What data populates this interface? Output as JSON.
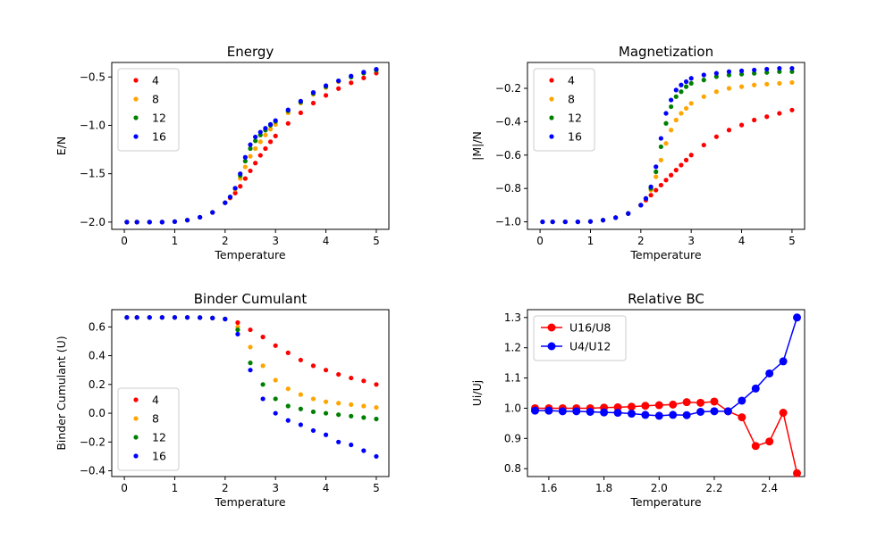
{
  "chart_data": [
    {
      "type": "scatter",
      "title": "Energy",
      "xlabel": "Temperature",
      "ylabel": "E/N",
      "xlim": [
        -0.25,
        5.25
      ],
      "ylim": [
        -2.075,
        -0.35
      ],
      "xticks": [
        0,
        1,
        2,
        3,
        4,
        5
      ],
      "yticks": [
        -2.0,
        -1.5,
        -1.0,
        -0.5
      ],
      "ytick_labels": [
        "−2.0",
        "−1.5",
        "−1.0",
        "−0.5"
      ],
      "legend": "upper left",
      "series": [
        {
          "name": "4",
          "color": "#ff0000",
          "x": [
            0.05,
            0.25,
            0.5,
            0.75,
            1.0,
            1.25,
            1.5,
            1.75,
            2.0,
            2.1,
            2.2,
            2.3,
            2.4,
            2.5,
            2.6,
            2.7,
            2.8,
            2.9,
            3.0,
            3.25,
            3.5,
            3.75,
            4.0,
            4.25,
            4.5,
            4.75,
            5.0
          ],
          "y": [
            -2.0,
            -2.0,
            -2.0,
            -2.0,
            -1.995,
            -1.98,
            -1.95,
            -1.9,
            -1.8,
            -1.75,
            -1.7,
            -1.63,
            -1.55,
            -1.47,
            -1.39,
            -1.31,
            -1.24,
            -1.17,
            -1.11,
            -0.98,
            -0.87,
            -0.77,
            -0.69,
            -0.62,
            -0.56,
            -0.51,
            -0.46
          ]
        },
        {
          "name": "8",
          "color": "#ffa500",
          "x": [
            0.05,
            0.25,
            0.5,
            0.75,
            1.0,
            1.25,
            1.5,
            1.75,
            2.0,
            2.1,
            2.2,
            2.3,
            2.4,
            2.5,
            2.6,
            2.7,
            2.8,
            2.9,
            3.0,
            3.25,
            3.5,
            3.75,
            4.0,
            4.25,
            4.5,
            4.75,
            5.0
          ],
          "y": [
            -2.0,
            -2.0,
            -2.0,
            -2.0,
            -1.995,
            -1.98,
            -1.95,
            -1.9,
            -1.8,
            -1.74,
            -1.66,
            -1.55,
            -1.43,
            -1.32,
            -1.24,
            -1.17,
            -1.1,
            -1.04,
            -0.99,
            -0.87,
            -0.77,
            -0.68,
            -0.61,
            -0.55,
            -0.5,
            -0.46,
            -0.43
          ]
        },
        {
          "name": "12",
          "color": "#008000",
          "x": [
            0.05,
            0.25,
            0.5,
            0.75,
            1.0,
            1.25,
            1.5,
            1.75,
            2.0,
            2.1,
            2.2,
            2.3,
            2.4,
            2.5,
            2.6,
            2.7,
            2.8,
            2.9,
            3.0,
            3.25,
            3.5,
            3.75,
            4.0,
            4.25,
            4.5,
            4.75,
            5.0
          ],
          "y": [
            -2.0,
            -2.0,
            -2.0,
            -2.0,
            -1.995,
            -1.98,
            -1.95,
            -1.9,
            -1.8,
            -1.74,
            -1.65,
            -1.52,
            -1.37,
            -1.24,
            -1.16,
            -1.1,
            -1.05,
            -1.0,
            -0.96,
            -0.85,
            -0.76,
            -0.67,
            -0.6,
            -0.54,
            -0.5,
            -0.46,
            -0.43
          ]
        },
        {
          "name": "16",
          "color": "#0000ff",
          "x": [
            0.05,
            0.25,
            0.5,
            0.75,
            1.0,
            1.25,
            1.5,
            1.75,
            2.0,
            2.1,
            2.2,
            2.3,
            2.4,
            2.5,
            2.6,
            2.7,
            2.8,
            2.9,
            3.0,
            3.25,
            3.5,
            3.75,
            4.0,
            4.25,
            4.5,
            4.75,
            5.0
          ],
          "y": [
            -2.0,
            -2.0,
            -2.0,
            -2.0,
            -1.995,
            -1.98,
            -1.95,
            -1.9,
            -1.8,
            -1.74,
            -1.65,
            -1.5,
            -1.33,
            -1.2,
            -1.12,
            -1.07,
            -1.03,
            -0.99,
            -0.95,
            -0.84,
            -0.75,
            -0.66,
            -0.59,
            -0.54,
            -0.49,
            -0.45,
            -0.42
          ]
        }
      ]
    },
    {
      "type": "scatter",
      "title": "Magnetization",
      "xlabel": "Temperature",
      "ylabel": "|M|/N",
      "xlim": [
        -0.25,
        5.25
      ],
      "ylim": [
        -1.045,
        -0.045
      ],
      "xticks": [
        0,
        1,
        2,
        3,
        4,
        5
      ],
      "yticks": [
        -1.0,
        -0.8,
        -0.6,
        -0.4,
        -0.2
      ],
      "ytick_labels": [
        "−1.0",
        "−0.8",
        "−0.6",
        "−0.4",
        "−0.2"
      ],
      "legend": "upper left",
      "series": [
        {
          "name": "4",
          "color": "#ff0000",
          "x": [
            0.05,
            0.25,
            0.5,
            0.75,
            1.0,
            1.25,
            1.5,
            1.75,
            2.0,
            2.1,
            2.2,
            2.3,
            2.4,
            2.5,
            2.6,
            2.7,
            2.8,
            2.9,
            3.0,
            3.25,
            3.5,
            3.75,
            4.0,
            4.25,
            4.5,
            4.75,
            5.0
          ],
          "y": [
            -1.0,
            -1.0,
            -1.0,
            -1.0,
            -0.998,
            -0.99,
            -0.975,
            -0.95,
            -0.9,
            -0.87,
            -0.84,
            -0.81,
            -0.78,
            -0.75,
            -0.72,
            -0.69,
            -0.66,
            -0.63,
            -0.6,
            -0.54,
            -0.49,
            -0.45,
            -0.42,
            -0.39,
            -0.37,
            -0.35,
            -0.33
          ]
        },
        {
          "name": "8",
          "color": "#ffa500",
          "x": [
            0.05,
            0.25,
            0.5,
            0.75,
            1.0,
            1.25,
            1.5,
            1.75,
            2.0,
            2.1,
            2.2,
            2.3,
            2.4,
            2.5,
            2.6,
            2.7,
            2.8,
            2.9,
            3.0,
            3.25,
            3.5,
            3.75,
            4.0,
            4.25,
            4.5,
            4.75,
            5.0
          ],
          "y": [
            -1.0,
            -1.0,
            -1.0,
            -1.0,
            -0.998,
            -0.99,
            -0.975,
            -0.95,
            -0.9,
            -0.86,
            -0.81,
            -0.73,
            -0.63,
            -0.53,
            -0.45,
            -0.39,
            -0.35,
            -0.32,
            -0.29,
            -0.25,
            -0.22,
            -0.2,
            -0.19,
            -0.18,
            -0.175,
            -0.17,
            -0.165
          ]
        },
        {
          "name": "12",
          "color": "#008000",
          "x": [
            0.05,
            0.25,
            0.5,
            0.75,
            1.0,
            1.25,
            1.5,
            1.75,
            2.0,
            2.1,
            2.2,
            2.3,
            2.4,
            2.5,
            2.6,
            2.7,
            2.8,
            2.9,
            3.0,
            3.25,
            3.5,
            3.75,
            4.0,
            4.25,
            4.5,
            4.75,
            5.0
          ],
          "y": [
            -1.0,
            -1.0,
            -1.0,
            -1.0,
            -0.998,
            -0.99,
            -0.975,
            -0.95,
            -0.9,
            -0.86,
            -0.8,
            -0.7,
            -0.55,
            -0.41,
            -0.31,
            -0.25,
            -0.22,
            -0.19,
            -0.17,
            -0.15,
            -0.13,
            -0.12,
            -0.115,
            -0.11,
            -0.105,
            -0.1,
            -0.1
          ]
        },
        {
          "name": "16",
          "color": "#0000ff",
          "x": [
            0.05,
            0.25,
            0.5,
            0.75,
            1.0,
            1.25,
            1.5,
            1.75,
            2.0,
            2.1,
            2.2,
            2.3,
            2.4,
            2.5,
            2.6,
            2.7,
            2.8,
            2.9,
            3.0,
            3.25,
            3.5,
            3.75,
            4.0,
            4.25,
            4.5,
            4.75,
            5.0
          ],
          "y": [
            -1.0,
            -1.0,
            -1.0,
            -1.0,
            -0.998,
            -0.99,
            -0.975,
            -0.95,
            -0.9,
            -0.86,
            -0.79,
            -0.67,
            -0.5,
            -0.35,
            -0.27,
            -0.21,
            -0.18,
            -0.16,
            -0.14,
            -0.12,
            -0.11,
            -0.1,
            -0.095,
            -0.09,
            -0.085,
            -0.08,
            -0.08
          ]
        }
      ]
    },
    {
      "type": "scatter",
      "title": "Binder Cumulant",
      "xlabel": "Temperature",
      "ylabel": "Binder Cumulant (U)",
      "xlim": [
        -0.25,
        5.25
      ],
      "ylim": [
        -0.44,
        0.72
      ],
      "xticks": [
        0,
        1,
        2,
        3,
        4,
        5
      ],
      "yticks": [
        -0.4,
        -0.2,
        0.0,
        0.2,
        0.4,
        0.6
      ],
      "ytick_labels": [
        "−0.4",
        "−0.2",
        "0.0",
        "0.2",
        "0.4",
        "0.6"
      ],
      "legend": "lower left",
      "series": [
        {
          "name": "4",
          "color": "#ff0000",
          "x": [
            0.05,
            0.25,
            0.5,
            0.75,
            1.0,
            1.25,
            1.5,
            1.75,
            2.0,
            2.25,
            2.5,
            2.75,
            3.0,
            3.25,
            3.5,
            3.75,
            4.0,
            4.25,
            4.5,
            4.75,
            5.0
          ],
          "y": [
            0.666,
            0.666,
            0.666,
            0.666,
            0.666,
            0.666,
            0.665,
            0.662,
            0.655,
            0.63,
            0.58,
            0.53,
            0.47,
            0.42,
            0.37,
            0.33,
            0.3,
            0.27,
            0.245,
            0.225,
            0.2
          ]
        },
        {
          "name": "8",
          "color": "#ffa500",
          "x": [
            0.05,
            0.25,
            0.5,
            0.75,
            1.0,
            1.25,
            1.5,
            1.75,
            2.0,
            2.25,
            2.5,
            2.75,
            3.0,
            3.25,
            3.5,
            3.75,
            4.0,
            4.25,
            4.5,
            4.75,
            5.0
          ],
          "y": [
            0.666,
            0.666,
            0.666,
            0.666,
            0.666,
            0.666,
            0.665,
            0.662,
            0.655,
            0.6,
            0.46,
            0.33,
            0.23,
            0.17,
            0.13,
            0.1,
            0.08,
            0.07,
            0.06,
            0.05,
            0.04
          ]
        },
        {
          "name": "12",
          "color": "#008000",
          "x": [
            0.05,
            0.25,
            0.5,
            0.75,
            1.0,
            1.25,
            1.5,
            1.75,
            2.0,
            2.25,
            2.5,
            2.75,
            3.0,
            3.25,
            3.5,
            3.75,
            4.0,
            4.25,
            4.5,
            4.75,
            5.0
          ],
          "y": [
            0.666,
            0.666,
            0.666,
            0.666,
            0.666,
            0.666,
            0.665,
            0.662,
            0.655,
            0.58,
            0.35,
            0.2,
            0.1,
            0.05,
            0.03,
            0.01,
            0.0,
            -0.01,
            -0.02,
            -0.03,
            -0.04
          ]
        },
        {
          "name": "16",
          "color": "#0000ff",
          "x": [
            0.05,
            0.25,
            0.5,
            0.75,
            1.0,
            1.25,
            1.5,
            1.75,
            2.0,
            2.25,
            2.5,
            2.75,
            3.0,
            3.25,
            3.5,
            3.75,
            4.0,
            4.25,
            4.5,
            4.75,
            5.0
          ],
          "y": [
            0.666,
            0.666,
            0.666,
            0.666,
            0.666,
            0.666,
            0.665,
            0.662,
            0.655,
            0.55,
            0.3,
            0.1,
            0.0,
            -0.05,
            -0.08,
            -0.12,
            -0.15,
            -0.2,
            -0.22,
            -0.26,
            -0.3
          ]
        }
      ]
    },
    {
      "type": "line",
      "title": "Relative BC",
      "xlabel": "Temperature",
      "ylabel": "Ui/Uj",
      "xlim": [
        1.5225,
        2.5275
      ],
      "ylim": [
        0.774,
        1.326
      ],
      "xticks": [
        1.6,
        1.8,
        2.0,
        2.2,
        2.4
      ],
      "xtick_labels": [
        "1.6",
        "1.8",
        "2.0",
        "2.2",
        "2.4"
      ],
      "yticks": [
        0.8,
        0.9,
        1.0,
        1.1,
        1.2,
        1.3
      ],
      "ytick_labels": [
        "0.8",
        "0.9",
        "1.0",
        "1.1",
        "1.2",
        "1.3"
      ],
      "legend": "upper left",
      "series": [
        {
          "name": "U16/U8",
          "color": "#ff0000",
          "marker": "circle",
          "x": [
            1.55,
            1.6,
            1.65,
            1.7,
            1.75,
            1.8,
            1.85,
            1.9,
            1.95,
            2.0,
            2.05,
            2.1,
            2.15,
            2.2,
            2.25,
            2.3,
            2.35,
            2.4,
            2.45,
            2.5
          ],
          "y": [
            1.0,
            1.0,
            1.0,
            1.0,
            1.0,
            1.002,
            1.003,
            1.005,
            1.008,
            1.01,
            1.012,
            1.02,
            1.018,
            1.022,
            0.99,
            0.97,
            0.875,
            0.89,
            0.985,
            0.785
          ]
        },
        {
          "name": "U4/U12",
          "color": "#0000ff",
          "marker": "circle",
          "x": [
            1.55,
            1.6,
            1.65,
            1.7,
            1.75,
            1.8,
            1.85,
            1.9,
            1.95,
            2.0,
            2.05,
            2.1,
            2.15,
            2.2,
            2.25,
            2.3,
            2.35,
            2.4,
            2.45,
            2.5
          ],
          "y": [
            0.992,
            0.992,
            0.99,
            0.99,
            0.988,
            0.986,
            0.985,
            0.982,
            0.978,
            0.975,
            0.978,
            0.977,
            0.988,
            0.99,
            0.99,
            1.025,
            1.065,
            1.115,
            1.155,
            1.3
          ]
        }
      ]
    }
  ]
}
